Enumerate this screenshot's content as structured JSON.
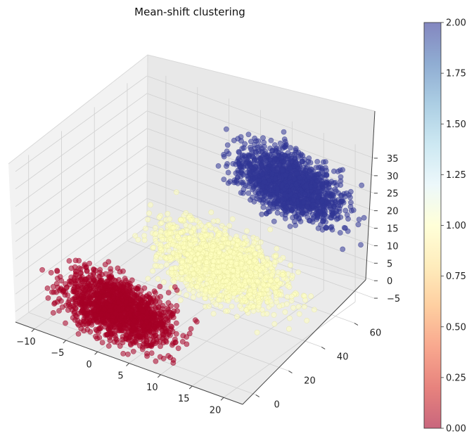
{
  "chart_data": {
    "type": "scatter",
    "projection": "3d",
    "title": "Mean-shift clustering",
    "xlabel": "",
    "ylabel": "",
    "zlabel": "",
    "x_ticks": [
      "−10",
      "−5",
      "0",
      "5",
      "10",
      "15",
      "20"
    ],
    "y_ticks": [
      "0",
      "20",
      "40",
      "60"
    ],
    "z_ticks": [
      "−5",
      "0",
      "5",
      "10",
      "15",
      "20",
      "25",
      "30",
      "35"
    ],
    "xlim": [
      -13,
      23
    ],
    "ylim": [
      -8,
      72
    ],
    "zlim": [
      -8,
      37
    ],
    "grid": true,
    "clusters": [
      {
        "label": 0,
        "color": "#a50026",
        "center": [
          0,
          5,
          0
        ],
        "spread": [
          6,
          4,
          6
        ],
        "count": 1500
      },
      {
        "label": 1,
        "color": "#ffffbf",
        "center": [
          10,
          30,
          10
        ],
        "spread": [
          7,
          5,
          7
        ],
        "count": 1500
      },
      {
        "label": 2,
        "color": "#313695",
        "center": [
          13,
          60,
          25
        ],
        "spread": [
          6,
          4,
          6
        ],
        "count": 1500
      }
    ],
    "colorbar": {
      "min": 0,
      "max": 2,
      "ticks": [
        "0.00",
        "0.25",
        "0.50",
        "0.75",
        "1.00",
        "1.25",
        "1.50",
        "1.75",
        "2.00"
      ],
      "colormap": "RdYlBu"
    }
  }
}
